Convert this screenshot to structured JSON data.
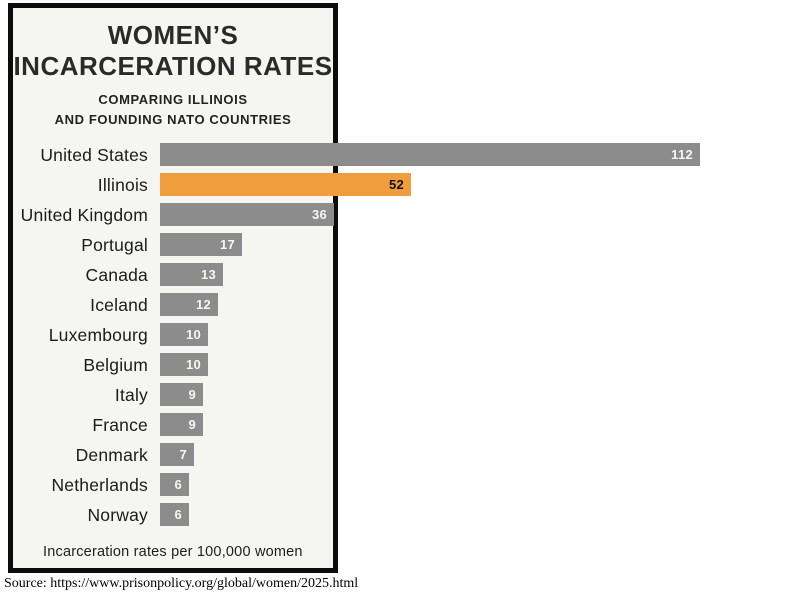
{
  "header": {
    "title_line1": "WOMEN’S",
    "title_line2": "INCARCERATION RATES",
    "subtitle_line1": "COMPARING ILLINOIS",
    "subtitle_line2": "AND FOUNDING NATO COUNTRIES"
  },
  "footer": {
    "note": "Incarceration rates per 100,000 women",
    "source": "Source: https://www.prisonpolicy.org/global/women/2025.html"
  },
  "chart_data": {
    "type": "bar",
    "orientation": "horizontal",
    "title": "WOMEN’S INCARCERATION RATES",
    "subtitle": "COMPARING ILLINOIS AND FOUNDING NATO COUNTRIES",
    "categories": [
      "United States",
      "Illinois",
      "United Kingdom",
      "Portugal",
      "Canada",
      "Iceland",
      "Luxembourg",
      "Belgium",
      "Italy",
      "France",
      "Denmark",
      "Netherlands",
      "Norway"
    ],
    "values": [
      112,
      52,
      36,
      17,
      13,
      12,
      10,
      10,
      9,
      9,
      7,
      6,
      6
    ],
    "unit_note": "Incarceration rates per 100,000 women",
    "highlight_category": "Illinois",
    "xlim": [
      0,
      112
    ],
    "grid": false,
    "legend": false,
    "value_labels": "inside-right",
    "colors": {
      "bar": "#8C8C8C",
      "highlight_bar": "#F09D3D",
      "value_label_on_gray": "#F6F6F3",
      "value_label_on_highlight": "#111111",
      "frame_border": "#0C0C0C",
      "frame_background": "#F5F5F2"
    }
  }
}
